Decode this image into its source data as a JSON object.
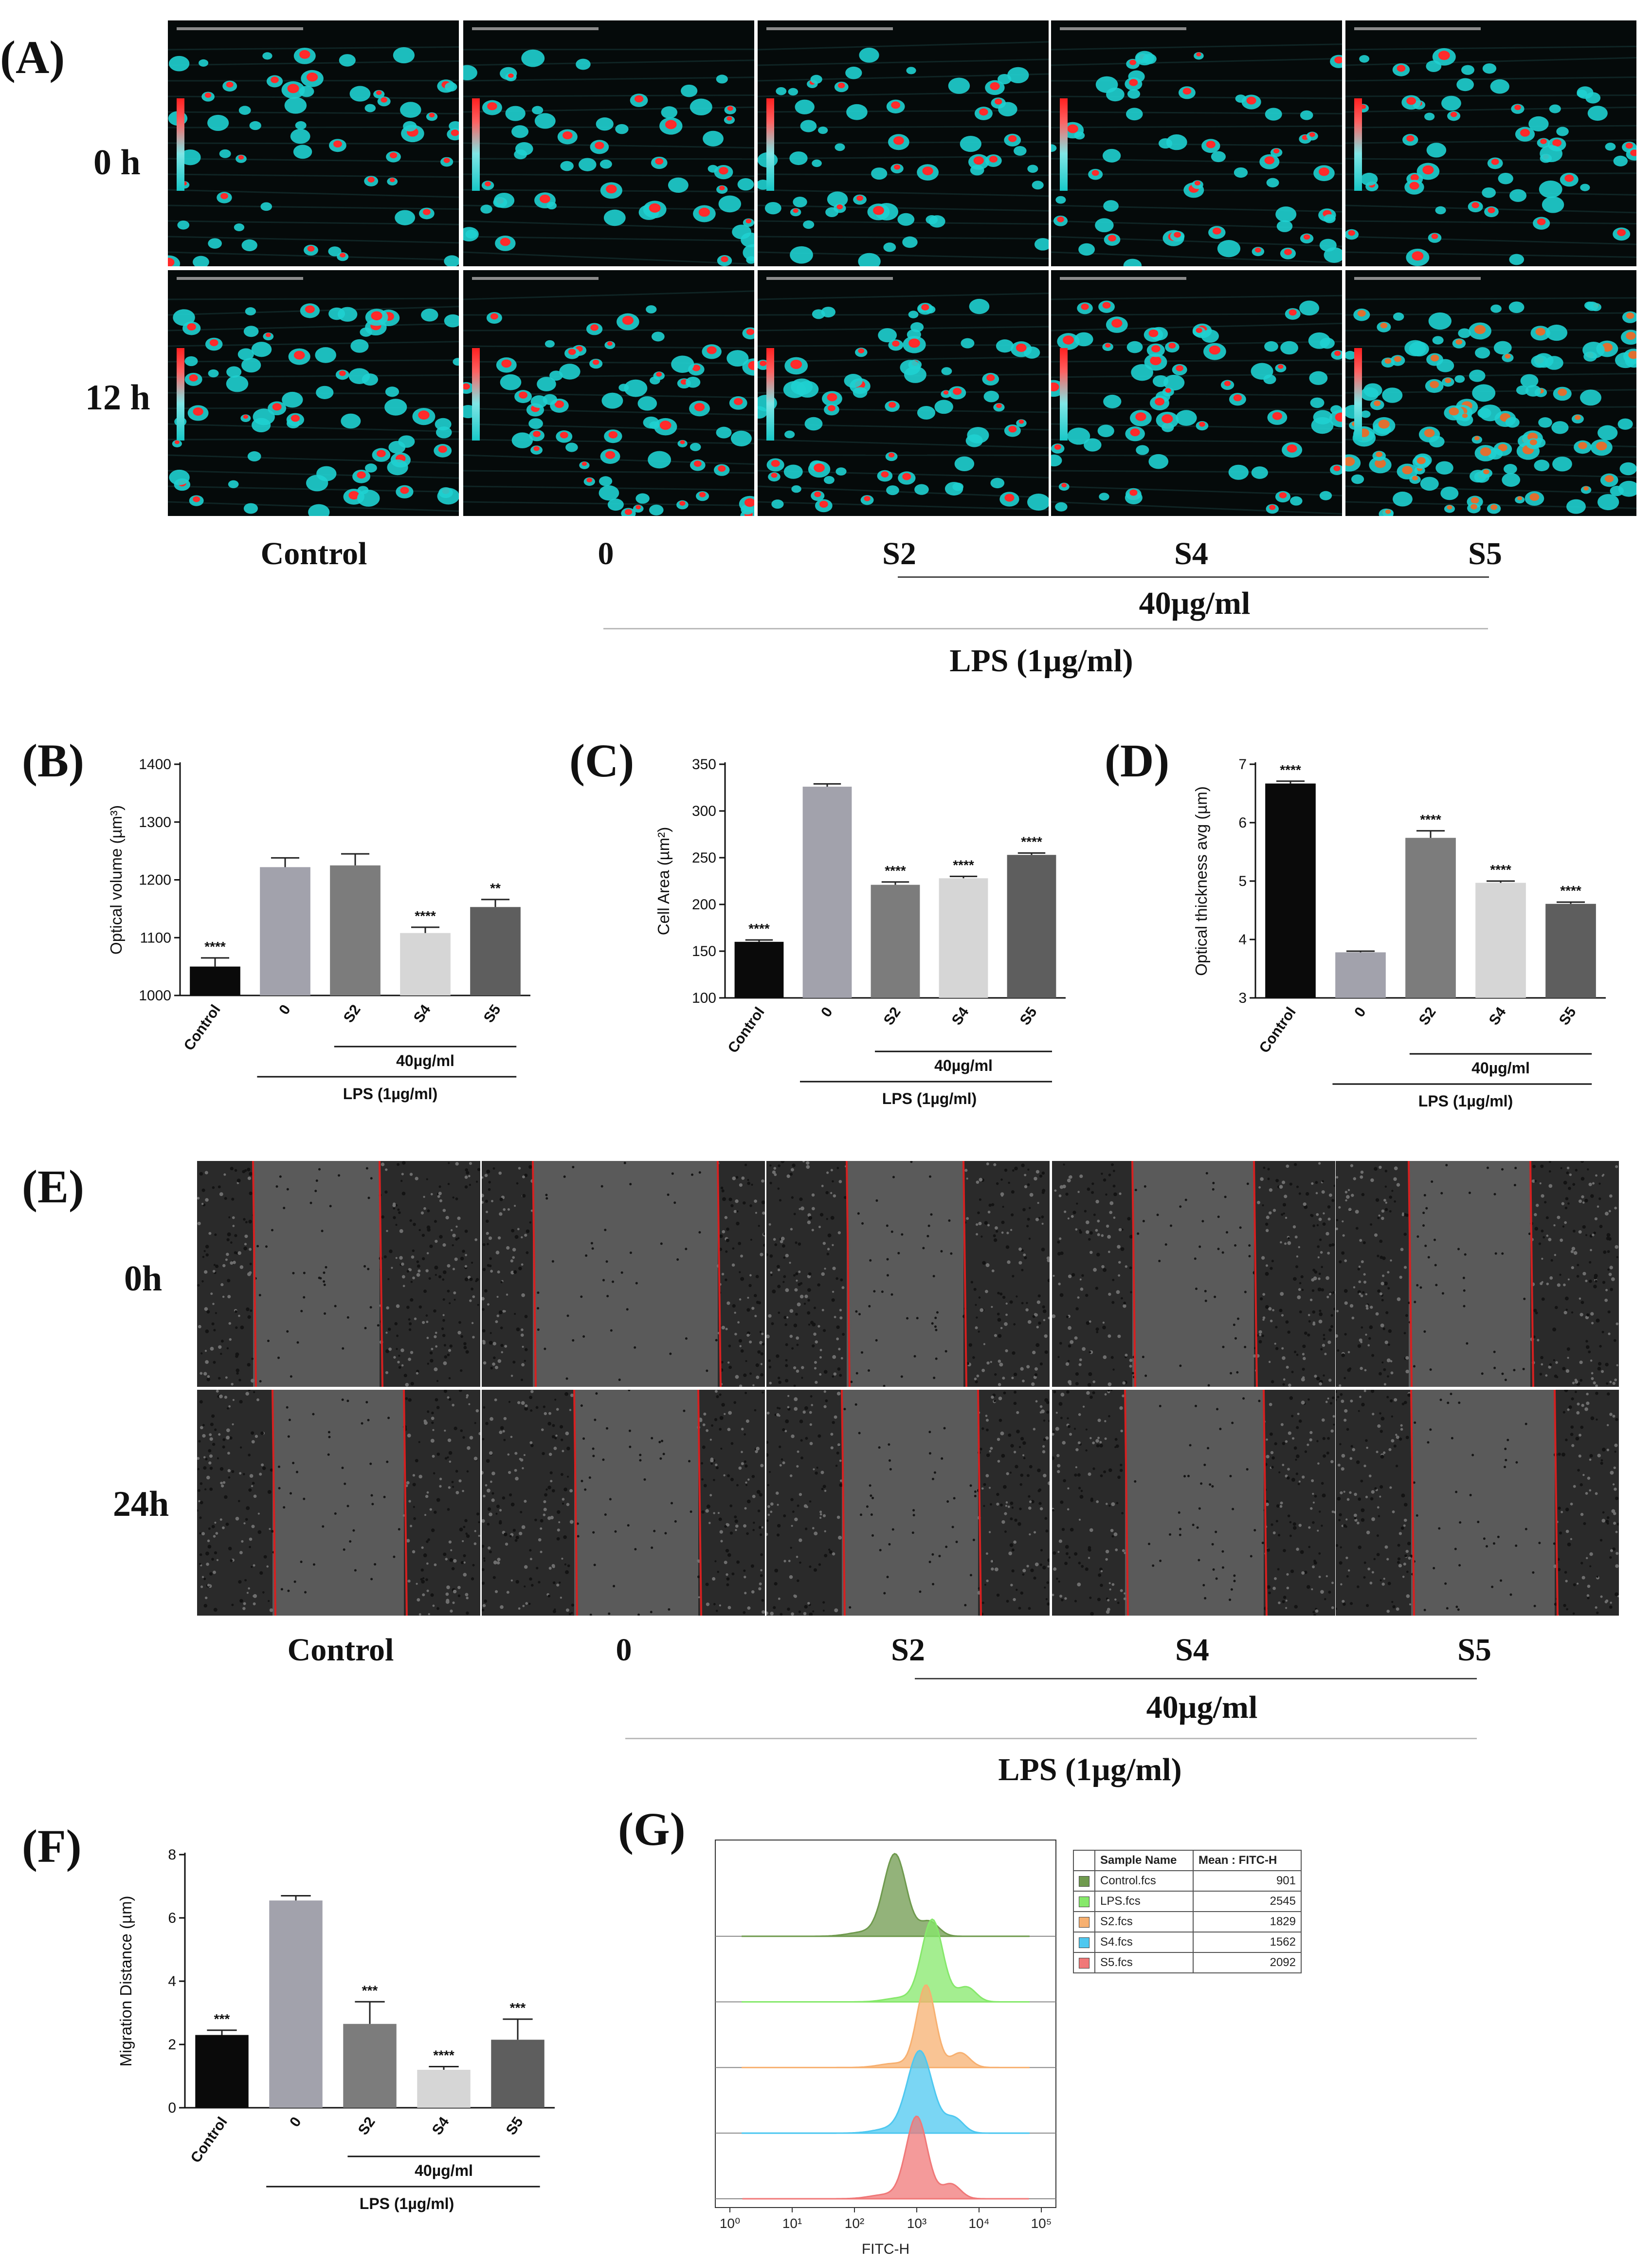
{
  "panels": {
    "A": {
      "label": "(A)",
      "rows": [
        "0 h",
        "12 h"
      ],
      "groups": [
        "Control",
        "0",
        "S2",
        "S4",
        "S5"
      ],
      "conc": "40µg/ml",
      "lps": "LPS (1µg/ml)"
    },
    "B": {
      "label": "(B)"
    },
    "C": {
      "label": "(C)"
    },
    "D": {
      "label": "(D)"
    },
    "E": {
      "label": "(E)",
      "rows": [
        "0h",
        "24h"
      ],
      "groups": [
        "Control",
        "0",
        "S2",
        "S4",
        "S5"
      ],
      "conc": "40µg/ml",
      "lps": "LPS (1µg/ml)"
    },
    "F": {
      "label": "(F)"
    },
    "G": {
      "label": "(G)"
    }
  },
  "chart_data": [
    {
      "id": "B",
      "type": "bar",
      "title": "",
      "ylabel": "Optical volume (µm³)",
      "ylim": [
        1000,
        1400
      ],
      "yticks": [
        1000,
        1100,
        1200,
        1300,
        1400
      ],
      "categories": [
        "Control",
        "0",
        "S2",
        "S4",
        "S5"
      ],
      "values": [
        1050,
        1222,
        1225,
        1108,
        1153
      ],
      "errors": [
        15,
        16,
        20,
        10,
        13
      ],
      "significance": [
        "****",
        "",
        "",
        "****",
        "**"
      ],
      "colors": [
        "#0a0a0a",
        "#a2a2ac",
        "#7c7c7c",
        "#d6d6d6",
        "#5e5e5e"
      ],
      "group_conc": "40µg/ml",
      "group_lps": "LPS (1µg/ml)"
    },
    {
      "id": "C",
      "type": "bar",
      "title": "",
      "ylabel": "Cell Area (µm²)",
      "ylim": [
        100,
        350
      ],
      "yticks": [
        100,
        150,
        200,
        250,
        300,
        350
      ],
      "categories": [
        "Control",
        "0",
        "S2",
        "S4",
        "S5"
      ],
      "values": [
        160,
        326,
        221,
        228,
        253
      ],
      "errors": [
        2,
        3,
        3,
        2,
        2
      ],
      "significance": [
        "****",
        "",
        "****",
        "****",
        "****"
      ],
      "colors": [
        "#0a0a0a",
        "#a2a2ac",
        "#7c7c7c",
        "#d6d6d6",
        "#5e5e5e"
      ],
      "group_conc": "40µg/ml",
      "group_lps": "LPS (1µg/ml)"
    },
    {
      "id": "D",
      "type": "bar",
      "title": "",
      "ylabel": "Optical thickness avg (µm)",
      "ylim": [
        3,
        7
      ],
      "yticks": [
        3,
        4,
        5,
        6,
        7
      ],
      "categories": [
        "Control",
        "0",
        "S2",
        "S4",
        "S5"
      ],
      "values": [
        6.67,
        3.78,
        5.74,
        4.97,
        4.61
      ],
      "errors": [
        0.04,
        0.02,
        0.12,
        0.03,
        0.03
      ],
      "significance": [
        "****",
        "",
        "****",
        "****",
        "****"
      ],
      "colors": [
        "#0a0a0a",
        "#a2a2ac",
        "#7c7c7c",
        "#d6d6d6",
        "#5e5e5e"
      ],
      "group_conc": "40µg/ml",
      "group_lps": "LPS (1µg/ml)"
    },
    {
      "id": "F",
      "type": "bar",
      "title": "",
      "ylabel": "Migration Distance (µm)",
      "ylim": [
        0,
        8
      ],
      "yticks": [
        0,
        2,
        4,
        6,
        8
      ],
      "categories": [
        "Control",
        "0",
        "S2",
        "S4",
        "S5"
      ],
      "values": [
        2.3,
        6.55,
        2.65,
        1.2,
        2.15
      ],
      "errors": [
        0.15,
        0.15,
        0.7,
        0.1,
        0.65
      ],
      "significance": [
        "***",
        "",
        "***",
        "****",
        "***"
      ],
      "colors": [
        "#0a0a0a",
        "#a2a2ac",
        "#7c7c7c",
        "#d6d6d6",
        "#5e5e5e"
      ],
      "group_conc": "40µg/ml",
      "group_lps": "LPS (1µg/ml)"
    },
    {
      "id": "G",
      "type": "histogram-overlay",
      "xlabel": "FITC-H",
      "xscale": "log",
      "xticks": [
        "10⁰",
        "10¹",
        "10²",
        "10³",
        "10⁴",
        "10⁵"
      ],
      "legend_headers": [
        "Sample Name",
        "Mean : FITC-H"
      ],
      "samples": [
        {
          "name": "Control.fcs",
          "mean": "901",
          "color": "#6f9a4e",
          "peak": 2.65,
          "width": 0.18
        },
        {
          "name": "LPS.fcs",
          "mean": "2545",
          "color": "#86e86b",
          "peak": 3.25,
          "width": 0.17
        },
        {
          "name": "S2.fcs",
          "mean": "1829",
          "color": "#f7b070",
          "peak": 3.15,
          "width": 0.15
        },
        {
          "name": "S4.fcs",
          "mean": "1562",
          "color": "#4ec8f0",
          "peak": 3.05,
          "width": 0.2
        },
        {
          "name": "S5.fcs",
          "mean": "2092",
          "color": "#f07878",
          "peak": 3.0,
          "width": 0.17
        }
      ]
    }
  ]
}
